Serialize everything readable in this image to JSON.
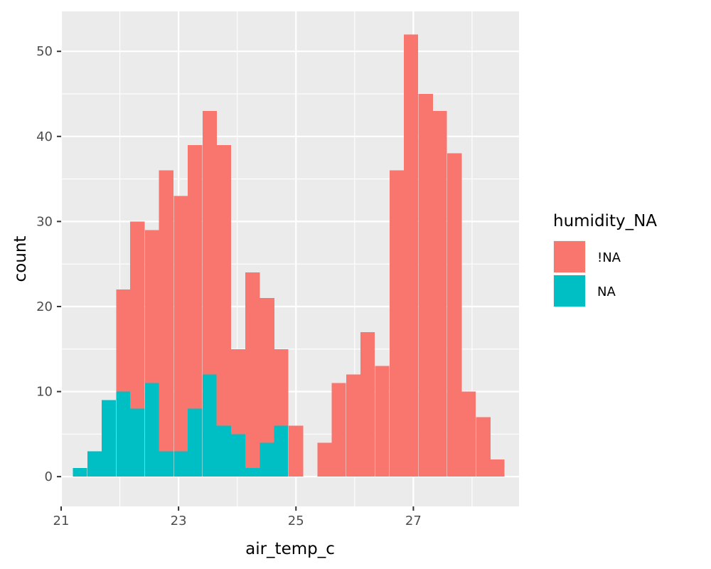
{
  "chart_data": {
    "type": "bar",
    "subtype": "stacked-histogram",
    "xlabel": "air_temp_c",
    "ylabel": "count",
    "xlim": [
      21,
      28.8
    ],
    "ylim": [
      -3.5,
      54.7
    ],
    "x_ticks": [
      21,
      23,
      25,
      27
    ],
    "y_ticks": [
      0,
      10,
      20,
      30,
      40,
      50
    ],
    "bin_width": 0.2451,
    "grid": true,
    "legend": {
      "title": "humidity_NA",
      "position": "right",
      "entries": [
        {
          "label": "!NA",
          "color": "#F8766D"
        },
        {
          "label": "NA",
          "color": "#00BFC4"
        }
      ]
    },
    "bins": [
      {
        "x": 21.32,
        "na": 1,
        "not_na": 0
      },
      {
        "x": 21.57,
        "na": 3,
        "not_na": 0
      },
      {
        "x": 21.81,
        "na": 9,
        "not_na": 0
      },
      {
        "x": 22.06,
        "na": 10,
        "not_na": 12
      },
      {
        "x": 22.3,
        "na": 8,
        "not_na": 22
      },
      {
        "x": 22.55,
        "na": 11,
        "not_na": 18
      },
      {
        "x": 22.79,
        "na": 3,
        "not_na": 33
      },
      {
        "x": 23.04,
        "na": 3,
        "not_na": 30
      },
      {
        "x": 23.28,
        "na": 8,
        "not_na": 31
      },
      {
        "x": 23.53,
        "na": 12,
        "not_na": 31
      },
      {
        "x": 23.77,
        "na": 6,
        "not_na": 33
      },
      {
        "x": 24.02,
        "na": 5,
        "not_na": 10
      },
      {
        "x": 24.26,
        "na": 1,
        "not_na": 23
      },
      {
        "x": 24.51,
        "na": 4,
        "not_na": 17
      },
      {
        "x": 24.75,
        "na": 6,
        "not_na": 9
      },
      {
        "x": 25.0,
        "na": 0,
        "not_na": 6
      },
      {
        "x": 25.24,
        "na": 0,
        "not_na": 0
      },
      {
        "x": 25.49,
        "na": 0,
        "not_na": 4
      },
      {
        "x": 25.73,
        "na": 0,
        "not_na": 11
      },
      {
        "x": 25.98,
        "na": 0,
        "not_na": 12
      },
      {
        "x": 26.22,
        "na": 0,
        "not_na": 17
      },
      {
        "x": 26.47,
        "na": 0,
        "not_na": 13
      },
      {
        "x": 26.72,
        "na": 0,
        "not_na": 36
      },
      {
        "x": 26.96,
        "na": 0,
        "not_na": 52
      },
      {
        "x": 27.21,
        "na": 0,
        "not_na": 45
      },
      {
        "x": 27.45,
        "na": 0,
        "not_na": 43
      },
      {
        "x": 27.7,
        "na": 0,
        "not_na": 38
      },
      {
        "x": 27.94,
        "na": 0,
        "not_na": 10
      },
      {
        "x": 28.19,
        "na": 0,
        "not_na": 7
      },
      {
        "x": 28.43,
        "na": 0,
        "not_na": 2
      }
    ]
  }
}
